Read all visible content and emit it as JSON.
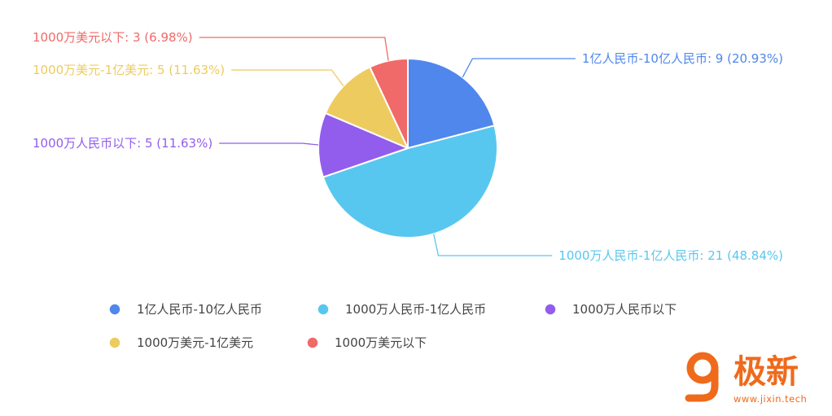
{
  "chart_data": {
    "type": "pie",
    "title": "",
    "categories": [
      "1亿人民币-10亿人民币",
      "1000万人民币-1亿人民币",
      "1000万人民币以下",
      "1000万美元-1亿美元",
      "1000万美元以下"
    ],
    "values": [
      9,
      21,
      5,
      5,
      3
    ],
    "percents": [
      "20.93%",
      "48.84%",
      "11.63%",
      "11.63%",
      "6.98%"
    ],
    "labels": [
      "1亿人民币-10亿人民币: 9 (20.93%)",
      "1000万人民币-1亿人民币: 21 (48.84%)",
      "1000万人民币以下: 5 (11.63%)",
      "1000万美元-1亿美元: 5 (11.63%)",
      "1000万美元以下: 3 (6.98%)"
    ],
    "colors": [
      "#5087ec",
      "#58c7ef",
      "#925ded",
      "#eecb5f",
      "#ef6a68"
    ],
    "legend_placement": "bottom"
  },
  "brand": {
    "name": "极新",
    "url": "www.jixin.tech",
    "color": "#ef6a1b"
  }
}
